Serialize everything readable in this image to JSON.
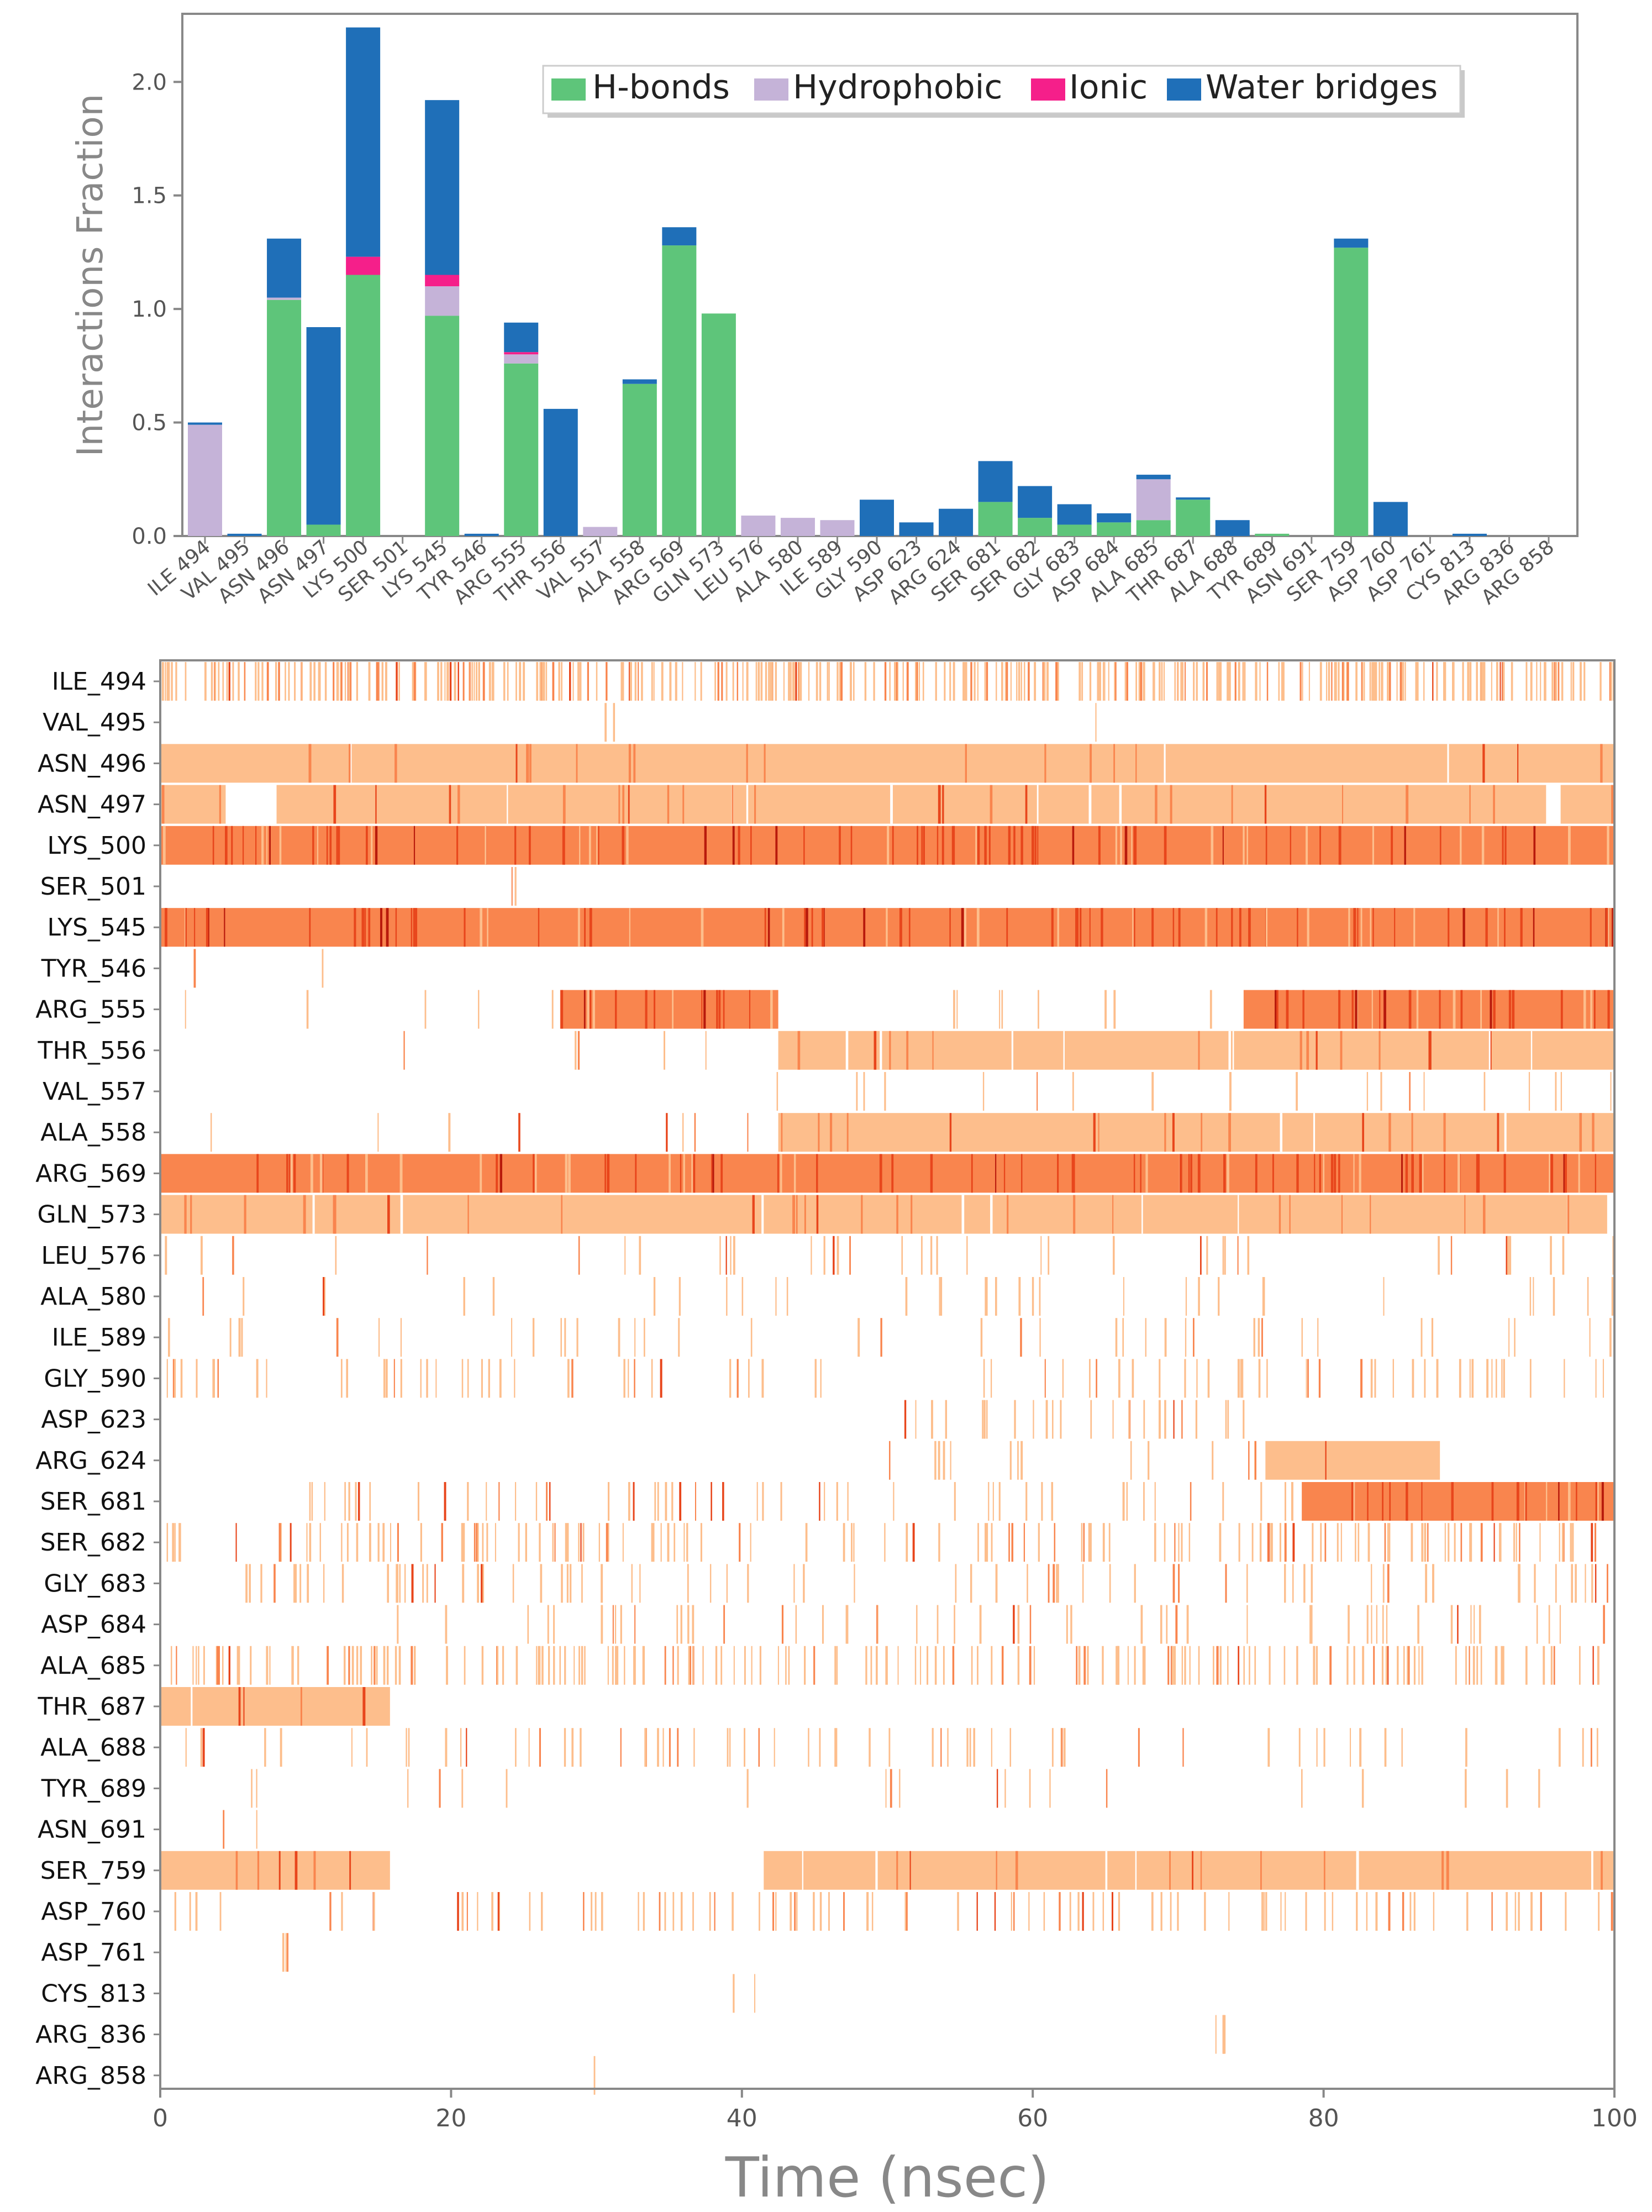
{
  "chart_data": [
    {
      "type": "bar",
      "stacked": true,
      "ylabel": "Interactions Fraction",
      "ylim": [
        0,
        2.3
      ],
      "yticks": [
        "0.0",
        "0.5",
        "1.0",
        "1.5",
        "2.0"
      ],
      "legend_position": "top-right",
      "categories": [
        "ILE_494",
        "VAL_495",
        "ASN_496",
        "ASN_497",
        "LYS_500",
        "SER_501",
        "LYS_545",
        "TYR_546",
        "ARG_555",
        "THR_556",
        "VAL_557",
        "ALA_558",
        "ARG_569",
        "GLN_573",
        "LEU_576",
        "ALA_580",
        "ILE_589",
        "GLY_590",
        "ASP_623",
        "ARG_624",
        "SER_681",
        "SER_682",
        "GLY_683",
        "ASP_684",
        "ALA_685",
        "THR_687",
        "ALA_688",
        "TYR_689",
        "ASN_691",
        "SER_759",
        "ASP_760",
        "ASP_761",
        "CYS_813",
        "ARG_836",
        "ARG_858"
      ],
      "series": [
        {
          "name": "H-bonds",
          "color": "#5ec57a",
          "values": [
            0,
            0,
            1.04,
            0.05,
            1.15,
            0,
            0.97,
            0,
            0.76,
            0,
            0,
            0.67,
            1.28,
            0.98,
            0,
            0,
            0,
            0,
            0,
            0,
            0.15,
            0.08,
            0.05,
            0.06,
            0.07,
            0.16,
            0,
            0.01,
            0,
            1.27,
            0,
            0,
            0,
            0,
            0
          ]
        },
        {
          "name": "Hydrophobic",
          "color": "#c5b3d8",
          "values": [
            0.49,
            0,
            0.01,
            0,
            0,
            0,
            0.13,
            0,
            0.04,
            0,
            0.04,
            0,
            0,
            0,
            0.09,
            0.08,
            0.07,
            0,
            0,
            0,
            0,
            0,
            0,
            0,
            0.18,
            0,
            0,
            0,
            0,
            0,
            0,
            0,
            0,
            0,
            0
          ]
        },
        {
          "name": "Ionic",
          "color": "#f51f8a",
          "values": [
            0,
            0,
            0,
            0,
            0.08,
            0,
            0.05,
            0,
            0.01,
            0,
            0,
            0,
            0,
            0,
            0,
            0,
            0,
            0,
            0,
            0,
            0,
            0,
            0,
            0,
            0,
            0,
            0,
            0,
            0,
            0,
            0,
            0,
            0,
            0,
            0
          ]
        },
        {
          "name": "Water bridges",
          "color": "#1f6fb8",
          "values": [
            0.01,
            0.01,
            0.26,
            0.87,
            1.01,
            0,
            0.77,
            0.01,
            0.13,
            0.56,
            0,
            0.02,
            0.08,
            0,
            0,
            0,
            0,
            0.16,
            0.06,
            0.12,
            0.18,
            0.14,
            0.09,
            0.04,
            0.02,
            0.01,
            0.07,
            0,
            0,
            0.04,
            0.15,
            0,
            0.01,
            0,
            0
          ]
        }
      ]
    },
    {
      "type": "heatmap",
      "xlabel": "Time (nsec)",
      "xlim": [
        0,
        100
      ],
      "xticks": [
        "0",
        "20",
        "40",
        "60",
        "80",
        "100"
      ],
      "rows": [
        "ILE_494",
        "VAL_495",
        "ASN_496",
        "ASN_497",
        "LYS_500",
        "SER_501",
        "LYS_545",
        "TYR_546",
        "ARG_555",
        "THR_556",
        "VAL_557",
        "ALA_558",
        "ARG_569",
        "GLN_573",
        "LEU_576",
        "ALA_580",
        "ILE_589",
        "GLY_590",
        "ASP_623",
        "ARG_624",
        "SER_681",
        "SER_682",
        "GLY_683",
        "ASP_684",
        "ALA_685",
        "THR_687",
        "ALA_688",
        "TYR_689",
        "ASN_691",
        "SER_759",
        "ASP_760",
        "ASP_761",
        "CYS_813",
        "ARG_836",
        "ARG_858"
      ],
      "color_scale": [
        "#fdbe8c",
        "#f9854e",
        "#e8461c",
        "#b81a0c"
      ],
      "solid_segments": [
        {
          "row": "ASN_496",
          "start": 0,
          "end": 100,
          "level": 1
        },
        {
          "row": "ASN_497",
          "start": 0,
          "end": 4.5,
          "level": 1
        },
        {
          "row": "ASN_497",
          "start": 8,
          "end": 95.3,
          "level": 1
        },
        {
          "row": "ASN_497",
          "start": 96.3,
          "end": 100,
          "level": 1
        },
        {
          "row": "LYS_500",
          "start": 0,
          "end": 100,
          "level": 2
        },
        {
          "row": "LYS_545",
          "start": 0,
          "end": 100,
          "level": 2
        },
        {
          "row": "ARG_555",
          "start": 27.5,
          "end": 42.5,
          "level": 2
        },
        {
          "row": "ARG_555",
          "start": 74.5,
          "end": 100,
          "level": 2
        },
        {
          "row": "THR_556",
          "start": 42.5,
          "end": 100,
          "level": 1
        },
        {
          "row": "ALA_558",
          "start": 42.5,
          "end": 100,
          "level": 1
        },
        {
          "row": "ARG_569",
          "start": 0,
          "end": 100,
          "level": 2
        },
        {
          "row": "GLN_573",
          "start": 0,
          "end": 99.5,
          "level": 1
        },
        {
          "row": "ARG_624",
          "start": 76,
          "end": 88,
          "level": 1
        },
        {
          "row": "SER_681",
          "start": 78.5,
          "end": 100,
          "level": 2
        },
        {
          "row": "THR_687",
          "start": 0,
          "end": 15.8,
          "level": 1
        },
        {
          "row": "SER_759",
          "start": 0,
          "end": 15.8,
          "level": 1
        },
        {
          "row": "SER_759",
          "start": 41.5,
          "end": 100,
          "level": 1
        }
      ],
      "sparse_ranges": [
        {
          "row": "ILE_494",
          "start": 0,
          "end": 100,
          "density": 0.55
        },
        {
          "row": "VAL_495",
          "start": 28,
          "end": 68,
          "density": 0.01
        },
        {
          "row": "SER_501",
          "start": 24,
          "end": 25,
          "density": 0.3
        },
        {
          "row": "TYR_546",
          "start": 0,
          "end": 13,
          "density": 0.02
        },
        {
          "row": "ARG_555",
          "start": 0,
          "end": 75,
          "density": 0.03
        },
        {
          "row": "THR_556",
          "start": 15,
          "end": 42,
          "density": 0.03
        },
        {
          "row": "VAL_557",
          "start": 42,
          "end": 100,
          "density": 0.05
        },
        {
          "row": "ALA_558",
          "start": 0,
          "end": 42,
          "density": 0.03
        },
        {
          "row": "LEU_576",
          "start": 0,
          "end": 100,
          "density": 0.06
        },
        {
          "row": "ALA_580",
          "start": 0,
          "end": 100,
          "density": 0.05
        },
        {
          "row": "ILE_589",
          "start": 0,
          "end": 100,
          "density": 0.06
        },
        {
          "row": "GLY_590",
          "start": 0,
          "end": 100,
          "density": 0.12
        },
        {
          "row": "ASP_623",
          "start": 50,
          "end": 75,
          "density": 0.15
        },
        {
          "row": "ARG_624",
          "start": 50,
          "end": 76,
          "density": 0.08
        },
        {
          "row": "SER_681",
          "start": 10,
          "end": 78,
          "density": 0.12
        },
        {
          "row": "SER_682",
          "start": 0,
          "end": 100,
          "density": 0.2
        },
        {
          "row": "GLY_683",
          "start": 5,
          "end": 100,
          "density": 0.12
        },
        {
          "row": "ASP_684",
          "start": 15,
          "end": 100,
          "density": 0.1
        },
        {
          "row": "ALA_685",
          "start": 0,
          "end": 100,
          "density": 0.28
        },
        {
          "row": "ALA_688",
          "start": 0,
          "end": 100,
          "density": 0.1
        },
        {
          "row": "TYR_689",
          "start": 0,
          "end": 100,
          "density": 0.03
        },
        {
          "row": "ASN_691",
          "start": 4,
          "end": 9,
          "density": 0.05
        },
        {
          "row": "ASP_760",
          "start": 0,
          "end": 100,
          "density": 0.15
        },
        {
          "row": "ASP_761",
          "start": 8,
          "end": 9,
          "density": 0.5
        },
        {
          "row": "CYS_813",
          "start": 35,
          "end": 41,
          "density": 0.05
        },
        {
          "row": "ARG_836",
          "start": 72,
          "end": 73.5,
          "density": 0.5
        },
        {
          "row": "ARG_858",
          "start": 27,
          "end": 31,
          "density": 0.05
        }
      ]
    }
  ]
}
